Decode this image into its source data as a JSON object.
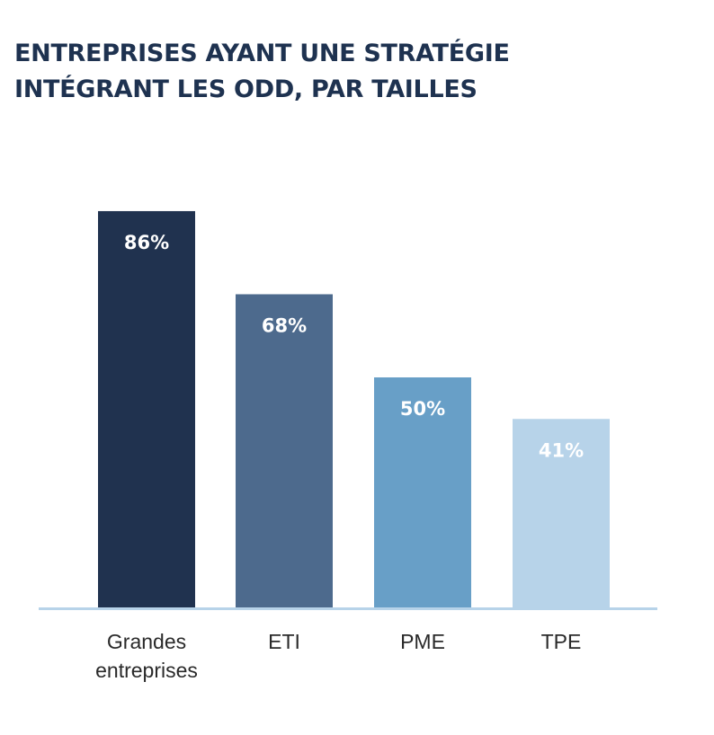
{
  "title_lines": [
    "ENTREPRISES AYANT UNE STRATÉGIE",
    "INTÉGRANT LES ODD, PAR TAILLES"
  ],
  "chart_data": {
    "type": "bar",
    "title": "ENTREPRISES AYANT UNE STRATÉGIE INTÉGRANT LES ODD, PAR TAILLES",
    "categories": [
      [
        "Grandes",
        "entreprises"
      ],
      [
        "ETI"
      ],
      [
        "PME"
      ],
      [
        "TPE"
      ]
    ],
    "values": [
      86,
      68,
      50,
      41
    ],
    "value_labels": [
      "86%",
      "68%",
      "50%",
      "41%"
    ],
    "colors": [
      "#20324f",
      "#4d6a8d",
      "#689fc7",
      "#b7d3e9"
    ],
    "baseline_color": "#b7d3e9",
    "ylim": [
      0,
      100
    ],
    "grid": false,
    "legend": "none"
  }
}
